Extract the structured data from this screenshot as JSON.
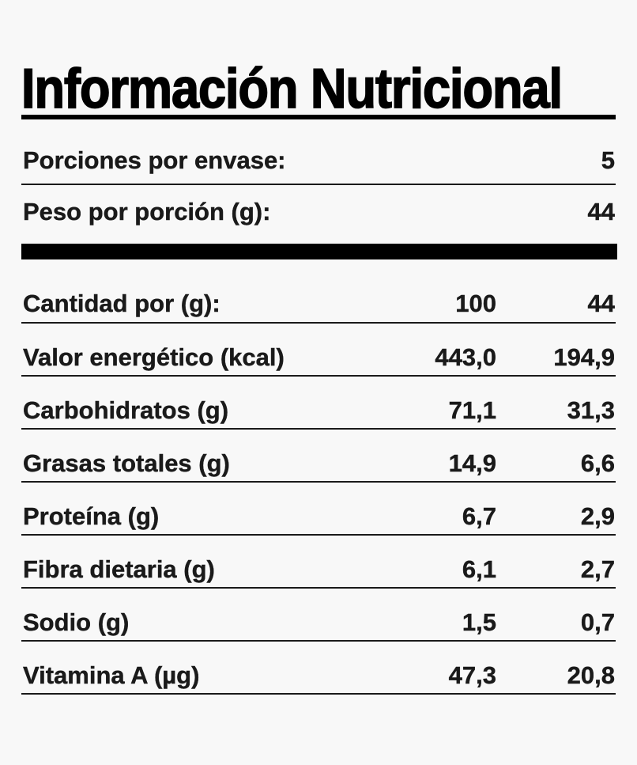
{
  "title": "Información Nutricional",
  "servings": {
    "portions_label": "Porciones por envase:",
    "portions_value": "5",
    "weight_label": "Peso por porción (g):",
    "weight_value": "44"
  },
  "table": {
    "header": {
      "label": "Cantidad por (g):",
      "per_100": "100",
      "per_portion": "44"
    },
    "rows": [
      {
        "label": "Valor energético (kcal)",
        "per_100": "443,0",
        "per_portion": "194,9"
      },
      {
        "label": "Carbohidratos (g)",
        "per_100": "71,1",
        "per_portion": "31,3"
      },
      {
        "label": "Grasas totales (g)",
        "per_100": "14,9",
        "per_portion": "6,6"
      },
      {
        "label": "Proteína (g)",
        "per_100": "6,7",
        "per_portion": "2,9"
      },
      {
        "label": "Fibra dietaria (g)",
        "per_100": "6,1",
        "per_portion": "2,7"
      },
      {
        "label": "Sodio (g)",
        "per_100": "1,5",
        "per_portion": "0,7"
      },
      {
        "label": "Vitamina A (µg)",
        "per_100": "47,3",
        "per_portion": "20,8"
      }
    ]
  }
}
